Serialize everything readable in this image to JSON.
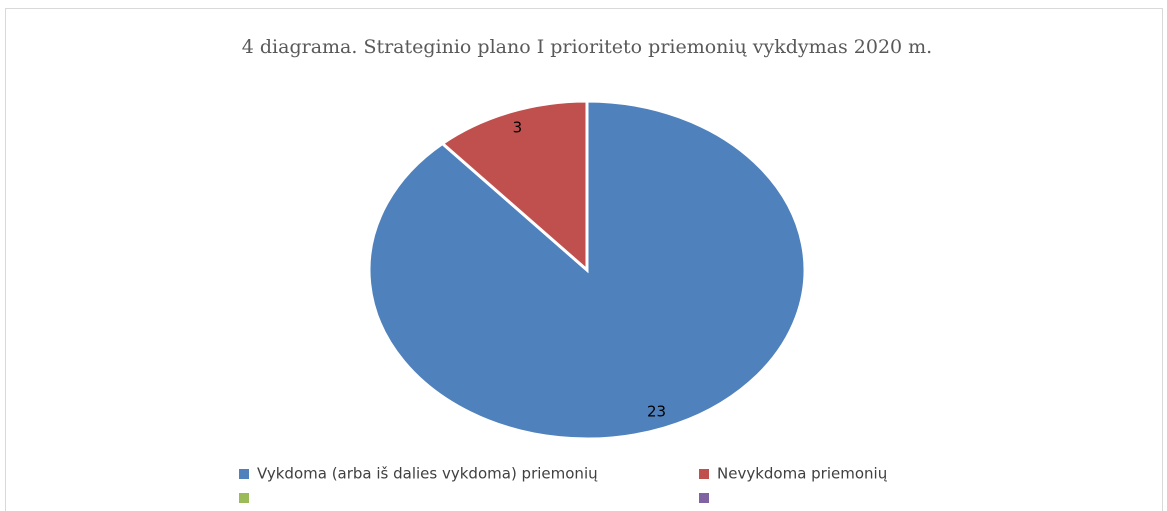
{
  "chart_data": {
    "type": "pie",
    "title": "4 diagrama. Strateginio plano I prioriteto priemonių vykdymas 2020 m.",
    "categories": [
      "Vykdoma (arba iš dalies vykdoma) priemonių",
      "Nevykdoma priemonių",
      null,
      null
    ],
    "values": [
      23,
      3,
      null,
      null
    ],
    "colors": [
      "#4f81bd",
      "#c0504d",
      "#9bbb59",
      "#8064a2"
    ],
    "legend": "bottom"
  }
}
